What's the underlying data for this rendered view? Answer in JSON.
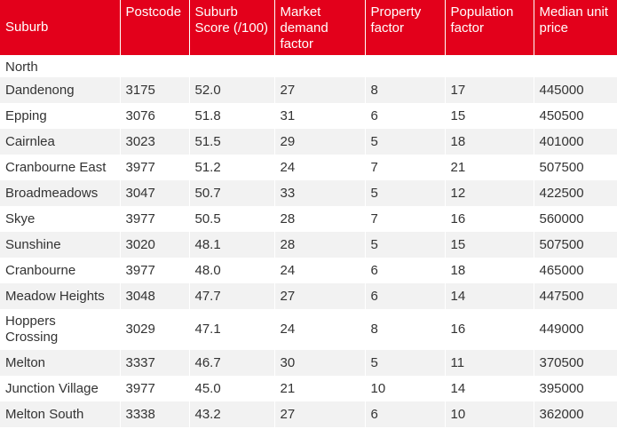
{
  "table": {
    "header": [
      "Suburb",
      "Postcode",
      "Suburb Score (/100)",
      "Market demand factor",
      "Property factor",
      "Population factor",
      "Median unit price"
    ],
    "rows": [
      [
        "North",
        "",
        "",
        "",
        "",
        "",
        ""
      ],
      [
        "Dandenong",
        "3175",
        "52.0",
        "27",
        "8",
        "17",
        "445000"
      ],
      [
        "Epping",
        "3076",
        "51.8",
        "31",
        "6",
        "15",
        "450500"
      ],
      [
        "Cairnlea",
        "3023",
        "51.5",
        "29",
        "5",
        "18",
        "401000"
      ],
      [
        "Cranbourne East",
        "3977",
        "51.2",
        "24",
        "7",
        "21",
        "507500"
      ],
      [
        "Broadmeadows",
        "3047",
        "50.7",
        "33",
        "5",
        "12",
        "422500"
      ],
      [
        "Skye",
        "3977",
        "50.5",
        "28",
        "7",
        "16",
        "560000"
      ],
      [
        "Sunshine",
        "3020",
        "48.1",
        "28",
        "5",
        "15",
        "507500"
      ],
      [
        "Cranbourne",
        "3977",
        "48.0",
        "24",
        "6",
        "18",
        "465000"
      ],
      [
        "Meadow Heights",
        "3048",
        "47.7",
        "27",
        "6",
        "14",
        "447500"
      ],
      [
        "Hoppers Crossing",
        "3029",
        "47.1",
        "24",
        "8",
        "16",
        "449000"
      ],
      [
        "Melton",
        "3337",
        "46.7",
        "30",
        "5",
        "11",
        "370500"
      ],
      [
        "Junction Village",
        "3977",
        "45.0",
        "21",
        "10",
        "14",
        "395000"
      ],
      [
        "Melton South",
        "3338",
        "43.2",
        "27",
        "6",
        "10",
        "362000"
      ]
    ]
  }
}
